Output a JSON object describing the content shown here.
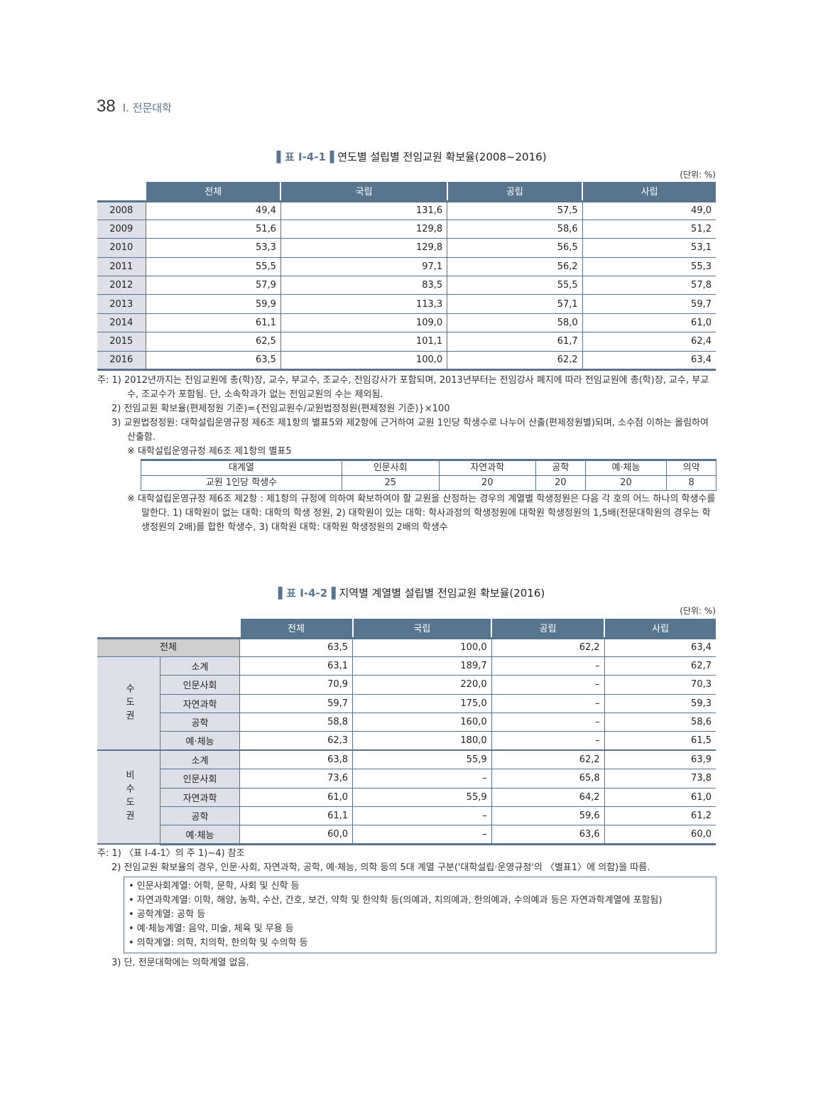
{
  "page": {
    "number": "38",
    "section": "Ⅰ. 전문대학"
  },
  "table1": {
    "label": "▌표 Ⅰ-4-1▐",
    "title": "연도별 설립별 전임교원 확보율(2008~2016)",
    "unit": "(단위: %)",
    "headers": [
      "전체",
      "국립",
      "공립",
      "사립"
    ],
    "rows": [
      [
        "2008",
        "49,4",
        "131,6",
        "57,5",
        "49,0"
      ],
      [
        "2009",
        "51,6",
        "129,8",
        "58,6",
        "51,2"
      ],
      [
        "2010",
        "53,3",
        "129,8",
        "56,5",
        "53,1"
      ],
      [
        "2011",
        "55,5",
        "97,1",
        "56,2",
        "55,3"
      ],
      [
        "2012",
        "57,9",
        "83,5",
        "55,5",
        "57,8"
      ],
      [
        "2013",
        "59,9",
        "113,3",
        "57,1",
        "59,7"
      ],
      [
        "2014",
        "61,1",
        "109,0",
        "58,0",
        "61,0"
      ],
      [
        "2015",
        "62,5",
        "101,1",
        "61,7",
        "62,4"
      ],
      [
        "2016",
        "63,5",
        "100,0",
        "62,2",
        "63,4"
      ]
    ],
    "notes": {
      "n1a": "주: 1) 2012년까지는 전임교원에 총(학)장, 교수, 부교수, 조교수, 전임강사가 포함되며, 2013년부터는 전임강사 폐지에 따라 전임교원에 총(학)장, 교수, 부교수, 조교수가 포함됨. 단, 소속학과가 없는 전임교원의 수는 제외됨.",
      "n2": "2) 전임교원 확보율(편제정원 기준)={전임교원수/교원법정정원(편제정원 기준)}×100",
      "n3": "3) 교원법정정원: 대학설립운영규정 제6조 제1항의 별표5와 제2항에 근거하여 교원 1인당 학생수로 나누어 산출(편제정원별)되며, 소수점 이하는 올림하여 산출함.",
      "ref1": "※ 대학설립운영규정 제6조 제1항의 별표5",
      "small_headers": [
        "대계열",
        "인문사회",
        "자연과학",
        "공학",
        "예·체능",
        "의약"
      ],
      "small_row": [
        "교원 1인당 학생수",
        "25",
        "20",
        "20",
        "20",
        "8"
      ],
      "ref2": "※ 대학설립운영규정 제6조 제2항 : 제1항의 규정에 의하여 확보하여야 할 교원을 산정하는 경우의 계열별 학생정원은 다음 각 호의 어느 하나의 학생수를 말한다. 1) 대학원이 없는 대학: 대학의 학생 정원, 2) 대학원이 있는 대학: 학사과정의 학생정원에 대학원 학생정원의 1,5배(전문대학원의 경우는 학생정원의 2배)를 합한 학생수, 3) 대학원 대학: 대학원 학생정원의 2배의 학생수"
    }
  },
  "table2": {
    "label": "▌표 Ⅰ-4-2▐",
    "title": "지역별 계열별 설립별 전임교원 확보율(2016)",
    "unit": "(단위: %)",
    "headers": [
      "전체",
      "국립",
      "공립",
      "사립"
    ],
    "total": [
      "전체",
      "63,5",
      "100,0",
      "62,2",
      "63,4"
    ],
    "groups": [
      {
        "name": "수도권",
        "rows": [
          [
            "소계",
            "63,1",
            "189,7",
            "–",
            "62,7"
          ],
          [
            "인문사회",
            "70,9",
            "220,0",
            "–",
            "70,3"
          ],
          [
            "자연과학",
            "59,7",
            "175,0",
            "–",
            "59,3"
          ],
          [
            "공학",
            "58,8",
            "160,0",
            "–",
            "58,6"
          ],
          [
            "예·체능",
            "62,3",
            "180,0",
            "–",
            "61,5"
          ]
        ]
      },
      {
        "name": "비수도권",
        "rows": [
          [
            "소계",
            "63,8",
            "55,9",
            "62,2",
            "63,9"
          ],
          [
            "인문사회",
            "73,6",
            "–",
            "65,8",
            "73,8"
          ],
          [
            "자연과학",
            "61,0",
            "55,9",
            "64,2",
            "61,0"
          ],
          [
            "공학",
            "61,1",
            "–",
            "59,6",
            "61,2"
          ],
          [
            "예·체능",
            "60,0",
            "–",
            "63,6",
            "60,0"
          ]
        ]
      }
    ],
    "notes": {
      "n1": "주: 1) 〈표 Ⅰ-4-1〉의 주 1)~4) 참조",
      "n2": "2) 전임교원 확보율의 경우, 인문·사회, 자연과학, 공학, 예·체능, 의학 등의 5대 계열 구분('대학설립·운영규정'의 〈별표1〉에 의함)을 따름.",
      "bullets": [
        "• 인문사회계열: 어학, 문학, 사회 및 신학 등",
        "• 자연과학계열: 이학, 해양, 농학, 수산, 간호, 보건, 약학 및 한약학 등(의예과, 치의예과, 한의예과, 수의예과 등은 자연과학계열에 포함됨)",
        "• 공학계열: 공학 등",
        "• 예·체능계열: 음악, 미술, 체육 및 무용 등",
        "• 의학계열: 의학, 치의학, 한의학 및 수의학 등"
      ],
      "n3": "3) 단, 전문대학에는 의학계열 없음."
    }
  },
  "colors": {
    "accent": "#587590",
    "row_header_bg": "#dde0e7",
    "total_bg": "#cfcfcf"
  }
}
